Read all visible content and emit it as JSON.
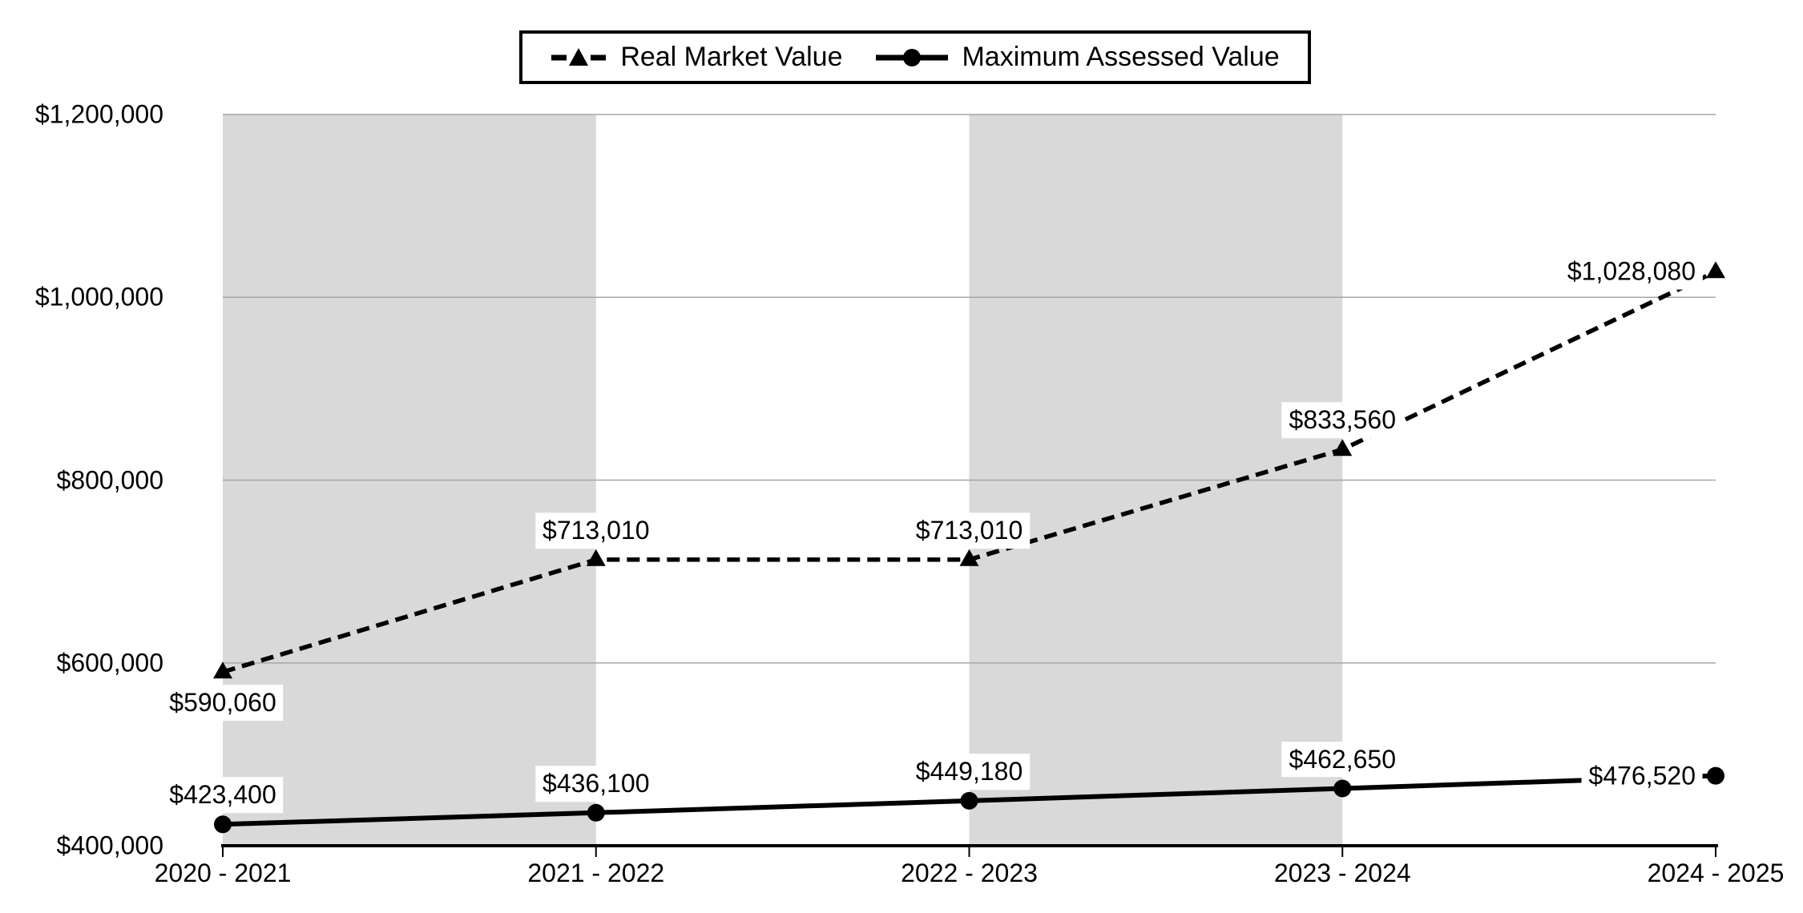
{
  "chart_data": {
    "type": "line",
    "title": "",
    "xlabel": "",
    "ylabel": "",
    "categories": [
      "2020 - 2021",
      "2021 - 2022",
      "2022 - 2023",
      "2023 - 2024",
      "2024 - 2025"
    ],
    "series": [
      {
        "name": "Real Market Value",
        "style": "dashed",
        "marker": "triangle",
        "values": [
          590060,
          713010,
          713010,
          833560,
          1028080
        ],
        "labels": [
          "$590,060",
          "$713,010",
          "$713,010",
          "$833,560",
          "$1,028,080"
        ],
        "label_placement": [
          "below",
          "above",
          "above",
          "above",
          "left"
        ]
      },
      {
        "name": "Maximum Assessed Value",
        "style": "solid",
        "marker": "circle",
        "values": [
          423400,
          436100,
          449180,
          462650,
          476520
        ],
        "labels": [
          "$423,400",
          "$436,100",
          "$449,180",
          "$462,650",
          "$476,520"
        ],
        "label_placement": [
          "above",
          "above",
          "above",
          "above",
          "left"
        ]
      }
    ],
    "y_ticks": [
      {
        "value": 400000,
        "label": "$400,000"
      },
      {
        "value": 600000,
        "label": "$600,000"
      },
      {
        "value": 800000,
        "label": "$800,000"
      },
      {
        "value": 1000000,
        "label": "$1,000,000"
      },
      {
        "value": 1200000,
        "label": "$1,200,000"
      }
    ],
    "ylim": [
      400000,
      1200000
    ],
    "grid": "horizontal",
    "legend_position": "top-center",
    "shaded_band_intervals": [
      [
        0,
        1
      ],
      [
        2,
        3
      ]
    ],
    "colors": {
      "band": "#d9d9d9",
      "gridline": "#a6a6a6",
      "axis": "#000000",
      "series": "#000000",
      "label_background": "#ffffff",
      "background": "#ffffff"
    }
  }
}
